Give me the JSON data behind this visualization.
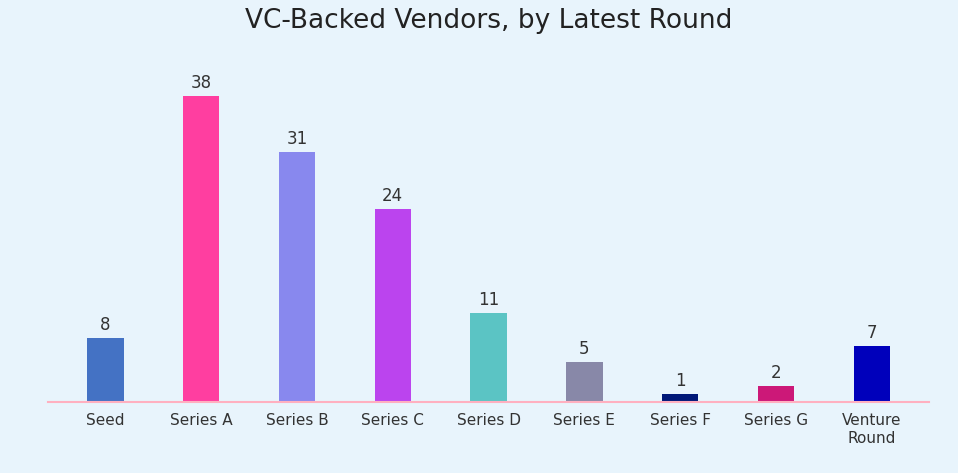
{
  "categories": [
    "Seed",
    "Series A",
    "Series B",
    "Series C",
    "Series D",
    "Series E",
    "Series F",
    "Series G",
    "Venture\nRound"
  ],
  "values": [
    8,
    38,
    31,
    24,
    11,
    5,
    1,
    2,
    7
  ],
  "bar_colors": [
    "#4472C4",
    "#FF3EA0",
    "#8888EE",
    "#BB44EE",
    "#5BC4C4",
    "#8888A8",
    "#001878",
    "#CC1878",
    "#0000BB"
  ],
  "title": "VC-Backed Vendors, by Latest Round",
  "title_fontsize": 19,
  "background_color": "#E8F4FC",
  "label_fontsize": 12,
  "tick_fontsize": 11,
  "ylim": [
    0,
    44
  ],
  "bar_width": 0.38,
  "figsize": [
    9.58,
    4.73
  ],
  "dpi": 100
}
